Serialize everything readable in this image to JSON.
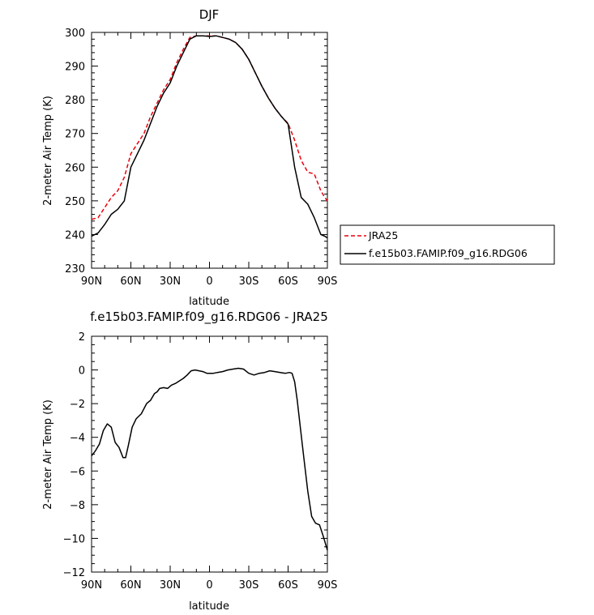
{
  "chart_data": [
    {
      "type": "line",
      "title": "DJF",
      "xlabel": "latitude",
      "ylabel": "2-meter Air Temp (K)",
      "xlim": [
        90,
        -90
      ],
      "ylim": [
        230,
        300
      ],
      "xticks": [
        90,
        60,
        30,
        0,
        -30,
        -60,
        -90
      ],
      "xtick_labels": [
        "90N",
        "60N",
        "30N",
        "0",
        "30S",
        "60S",
        "90S"
      ],
      "yticks": [
        230,
        240,
        250,
        260,
        270,
        280,
        290,
        300
      ],
      "ytick_labels": [
        "230",
        "240",
        "250",
        "260",
        "270",
        "280",
        "290",
        "300"
      ],
      "legend_position": "right",
      "series": [
        {
          "name": "JRA25",
          "color": "#e8000b",
          "style": "dashed",
          "x": [
            90,
            85,
            80,
            75,
            70,
            65,
            60,
            55,
            50,
            45,
            40,
            35,
            30,
            25,
            20,
            15,
            10,
            5,
            0,
            -5,
            -10,
            -15,
            -20,
            -25,
            -30,
            -35,
            -40,
            -45,
            -50,
            -55,
            -60,
            -65,
            -70,
            -75,
            -80,
            -85,
            -88,
            -90
          ],
          "y": [
            244.5,
            245,
            248,
            251,
            253,
            257,
            264,
            267,
            270,
            275,
            279,
            283,
            286,
            291,
            295,
            298.5,
            299,
            299,
            299,
            299,
            298.5,
            298,
            297,
            295,
            292,
            288,
            284,
            280.5,
            277.5,
            275,
            273,
            268,
            262,
            258.5,
            258,
            253,
            251,
            250
          ]
        },
        {
          "name": "f.e15b03.FAMIP.f09_g16.RDG06",
          "color": "#000000",
          "style": "solid",
          "x": [
            90,
            85,
            80,
            75,
            70,
            65,
            60,
            55,
            50,
            45,
            40,
            35,
            30,
            25,
            20,
            15,
            10,
            5,
            0,
            -5,
            -10,
            -15,
            -20,
            -25,
            -30,
            -35,
            -40,
            -45,
            -50,
            -55,
            -60,
            -65,
            -70,
            -75,
            -80,
            -85,
            -88,
            -90
          ],
          "y": [
            239.5,
            240.5,
            243,
            246,
            247.5,
            250,
            260,
            264,
            268,
            273,
            278,
            282,
            285,
            290,
            294,
            298,
            299,
            299,
            298.8,
            299,
            298.5,
            298,
            297,
            295,
            292,
            288,
            284,
            280.5,
            277.5,
            275,
            272.8,
            260,
            251,
            249,
            245,
            240,
            239.5,
            239
          ]
        }
      ]
    },
    {
      "type": "line",
      "title": "f.e15b03.FAMIP.f09_g16.RDG06 - JRA25",
      "xlabel": "latitude",
      "ylabel": "2-meter Air Temp (K)",
      "xlim": [
        90,
        -90
      ],
      "ylim": [
        -12,
        2
      ],
      "xticks": [
        90,
        60,
        30,
        0,
        -30,
        -60,
        -90
      ],
      "xtick_labels": [
        "90N",
        "60N",
        "30N",
        "0",
        "30S",
        "60S",
        "90S"
      ],
      "yticks": [
        -12,
        -10,
        -8,
        -6,
        -4,
        -2,
        0,
        2
      ],
      "ytick_labels": [
        "−12",
        "−10",
        "−8",
        "−6",
        "−4",
        "−2",
        "0",
        "2"
      ],
      "series": [
        {
          "color": "#000000",
          "style": "solid",
          "x": [
            90,
            87,
            84,
            81,
            78,
            75,
            72,
            69,
            66,
            64,
            62,
            59,
            56,
            52,
            48,
            45,
            42,
            40,
            38,
            35,
            32,
            29,
            26,
            23,
            20,
            17,
            14,
            11,
            8,
            5,
            2,
            0,
            -3,
            -6,
            -10,
            -14,
            -18,
            -22,
            -26,
            -30,
            -34,
            -38,
            -42,
            -46,
            -50,
            -54,
            -58,
            -61,
            -63,
            -65,
            -67,
            -69,
            -72,
            -75,
            -78,
            -81,
            -84,
            -87,
            -90
          ],
          "y": [
            -5.1,
            -4.8,
            -4.4,
            -3.6,
            -3.2,
            -3.4,
            -4.3,
            -4.6,
            -5.2,
            -5.2,
            -4.5,
            -3.4,
            -2.9,
            -2.6,
            -2.0,
            -1.8,
            -1.4,
            -1.3,
            -1.1,
            -1.05,
            -1.1,
            -0.9,
            -0.8,
            -0.65,
            -0.5,
            -0.3,
            -0.05,
            0.0,
            -0.05,
            -0.1,
            -0.2,
            -0.2,
            -0.2,
            -0.15,
            -0.1,
            0.0,
            0.05,
            0.1,
            0.05,
            -0.2,
            -0.3,
            -0.2,
            -0.15,
            -0.05,
            -0.1,
            -0.15,
            -0.2,
            -0.15,
            -0.2,
            -0.7,
            -1.8,
            -3.2,
            -5.2,
            -7.2,
            -8.7,
            -9.1,
            -9.2,
            -9.9,
            -10.7
          ]
        }
      ]
    }
  ]
}
